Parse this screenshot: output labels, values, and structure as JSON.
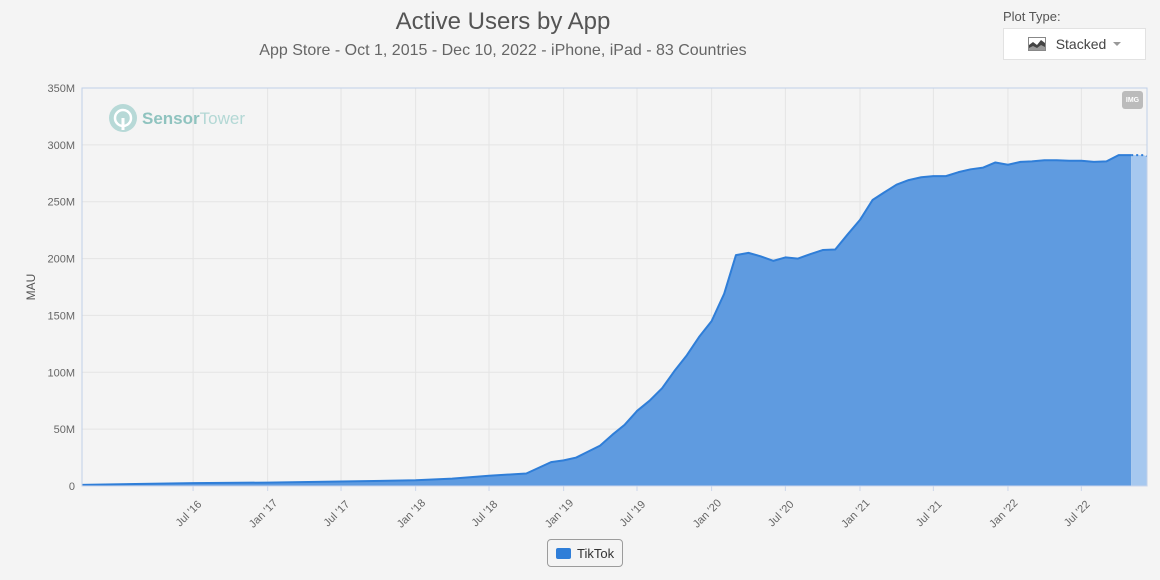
{
  "header": {
    "title": "Active Users by App",
    "subtitle": "App Store - Oct 1, 2015 - Dec 10, 2022 - iPhone, iPad - 83 Countries"
  },
  "plot_type": {
    "label": "Plot Type:",
    "value": "Stacked",
    "icon": "stacked-area-icon"
  },
  "watermark": {
    "text_bold": "Sensor",
    "text_light": "Tower"
  },
  "export_badge": {
    "label": "IMG"
  },
  "colors": {
    "series": "#2f7ed8",
    "fill": "#5f9be0",
    "fill_projected": "#a6c8ef",
    "grid": "#e4e4e4"
  },
  "chart_data": {
    "type": "area",
    "stacked": true,
    "title": "Active Users by App",
    "subtitle": "App Store - Oct 1, 2015 - Dec 10, 2022 - iPhone, iPad - 83 Countries",
    "xlabel": "",
    "ylabel": "MAU",
    "xlim": [
      "2015-10-01",
      "2022-12-10"
    ],
    "ylim": [
      0,
      350000000
    ],
    "y_ticks": [
      0,
      50000000,
      100000000,
      150000000,
      200000000,
      250000000,
      300000000,
      350000000
    ],
    "y_tick_labels": [
      "0",
      "50M",
      "100M",
      "150M",
      "200M",
      "250M",
      "300M",
      "350M"
    ],
    "x_ticks": [
      "2016-07-01",
      "2017-01-01",
      "2017-07-01",
      "2018-01-01",
      "2018-07-01",
      "2019-01-01",
      "2019-07-01",
      "2020-01-01",
      "2020-07-01",
      "2021-01-01",
      "2021-07-01",
      "2022-01-01",
      "2022-07-01"
    ],
    "x_tick_labels": [
      "Jul '16",
      "Jan '17",
      "Jul '17",
      "Jan '18",
      "Jul '18",
      "Jan '19",
      "Jul '19",
      "Jan '20",
      "Jul '20",
      "Jan '21",
      "Jul '21",
      "Jan '22",
      "Jul '22"
    ],
    "grid": true,
    "legend": "bottom-center",
    "series": [
      {
        "name": "TikTok",
        "x": [
          "2015-10-01",
          "2016-07-01",
          "2017-01-01",
          "2017-07-01",
          "2018-01-01",
          "2018-04-01",
          "2018-07-01",
          "2018-10-01",
          "2018-12-01",
          "2019-01-01",
          "2019-02-01",
          "2019-03-01",
          "2019-04-01",
          "2019-05-01",
          "2019-06-01",
          "2019-07-01",
          "2019-08-01",
          "2019-09-01",
          "2019-10-01",
          "2019-11-01",
          "2019-12-01",
          "2020-01-01",
          "2020-02-01",
          "2020-03-01",
          "2020-04-01",
          "2020-05-01",
          "2020-06-01",
          "2020-07-01",
          "2020-08-01",
          "2020-09-01",
          "2020-10-01",
          "2020-11-01",
          "2020-12-01",
          "2021-01-01",
          "2021-02-01",
          "2021-03-01",
          "2021-04-01",
          "2021-05-01",
          "2021-06-01",
          "2021-07-01",
          "2021-08-01",
          "2021-09-01",
          "2021-10-01",
          "2021-11-01",
          "2021-12-01",
          "2022-01-01",
          "2022-02-01",
          "2022-03-01",
          "2022-04-01",
          "2022-05-01",
          "2022-06-01",
          "2022-07-01",
          "2022-08-01",
          "2022-09-01",
          "2022-10-01",
          "2022-11-01",
          "2022-12-01",
          "2022-12-10"
        ],
        "values": [
          1000000,
          2500000,
          3000000,
          4000000,
          5000000,
          6500000,
          9000000,
          11000000,
          21000000,
          22500000,
          25000000,
          30000000,
          35500000,
          45000000,
          54000000,
          66000000,
          75000000,
          86000000,
          101000000,
          115000000,
          131000000,
          145000000,
          169000000,
          203000000,
          205000000,
          202000000,
          198000000,
          201000000,
          200000000,
          204000000,
          207500000,
          208000000,
          221000000,
          234000000,
          251500000,
          258000000,
          265000000,
          269000000,
          271500000,
          272500000,
          272500000,
          276000000,
          278500000,
          280000000,
          284500000,
          282500000,
          285000000,
          285500000,
          286500000,
          286500000,
          286000000,
          286000000,
          285000000,
          285500000,
          291000000,
          291000000,
          291000000,
          290000000
        ],
        "projected_from": "2022-11-01"
      }
    ]
  }
}
